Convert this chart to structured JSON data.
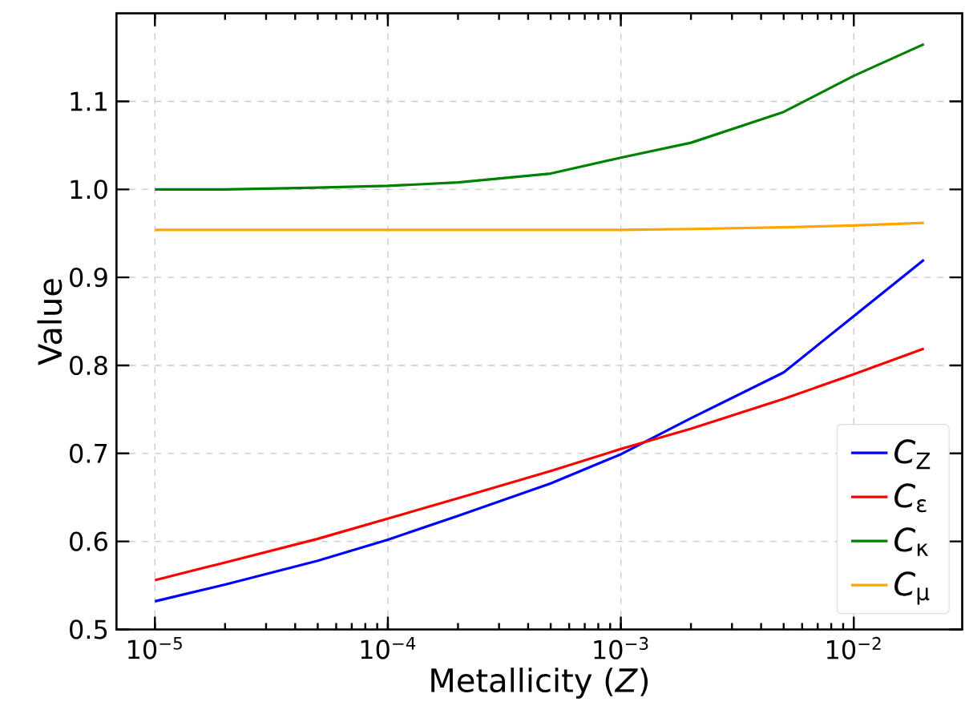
{
  "chart_data": {
    "type": "line",
    "xlabel": "Metallicity (*Z*)",
    "ylabel": "Value",
    "log": "x",
    "grid": true,
    "legend": "bottom right",
    "x": [
      1e-05,
      2e-05,
      5e-05,
      0.0001,
      0.0002,
      0.0005,
      0.001,
      0.002,
      0.005,
      0.01,
      0.02
    ],
    "xlim": [
      6.84e-06,
      0.0292
    ],
    "xticks": [
      {
        "value": 1e-05,
        "label": "10$^{−5}$"
      },
      {
        "value": 0.0001,
        "label": "10$^{−4}$"
      },
      {
        "value": 0.001,
        "label": "10$^{−3}$"
      },
      {
        "value": 0.01,
        "label": "10$^{−2}$"
      }
    ],
    "ylim": [
      0.5,
      1.2
    ],
    "yticks": [
      0.5,
      0.6,
      0.7,
      0.8,
      0.9,
      {
        "value": 1.0,
        "label": "1.0"
      },
      1.1
    ],
    "series": [
      {
        "name": "*C*$_{Z}$",
        "color": "#0000ff",
        "values": [
          0.532,
          0.551,
          0.578,
          0.602,
          0.629,
          0.666,
          0.699,
          0.74,
          0.792,
          0.856,
          0.92
        ]
      },
      {
        "name": "*C*$_{ε}$",
        "color": "#ff0000",
        "values": [
          0.556,
          0.576,
          0.603,
          0.626,
          0.649,
          0.68,
          0.705,
          0.728,
          0.762,
          0.79,
          0.819
        ]
      },
      {
        "name": "*C*$_{κ}$",
        "color": "#008000",
        "values": [
          1.0,
          1.0,
          1.002,
          1.004,
          1.008,
          1.018,
          1.036,
          1.053,
          1.088,
          1.129,
          1.165
        ]
      },
      {
        "name": "*C*$_{μ}$",
        "color": "#ffa500",
        "values": [
          0.954,
          0.954,
          0.954,
          0.954,
          0.954,
          0.954,
          0.954,
          0.955,
          0.957,
          0.959,
          0.962
        ]
      }
    ]
  }
}
